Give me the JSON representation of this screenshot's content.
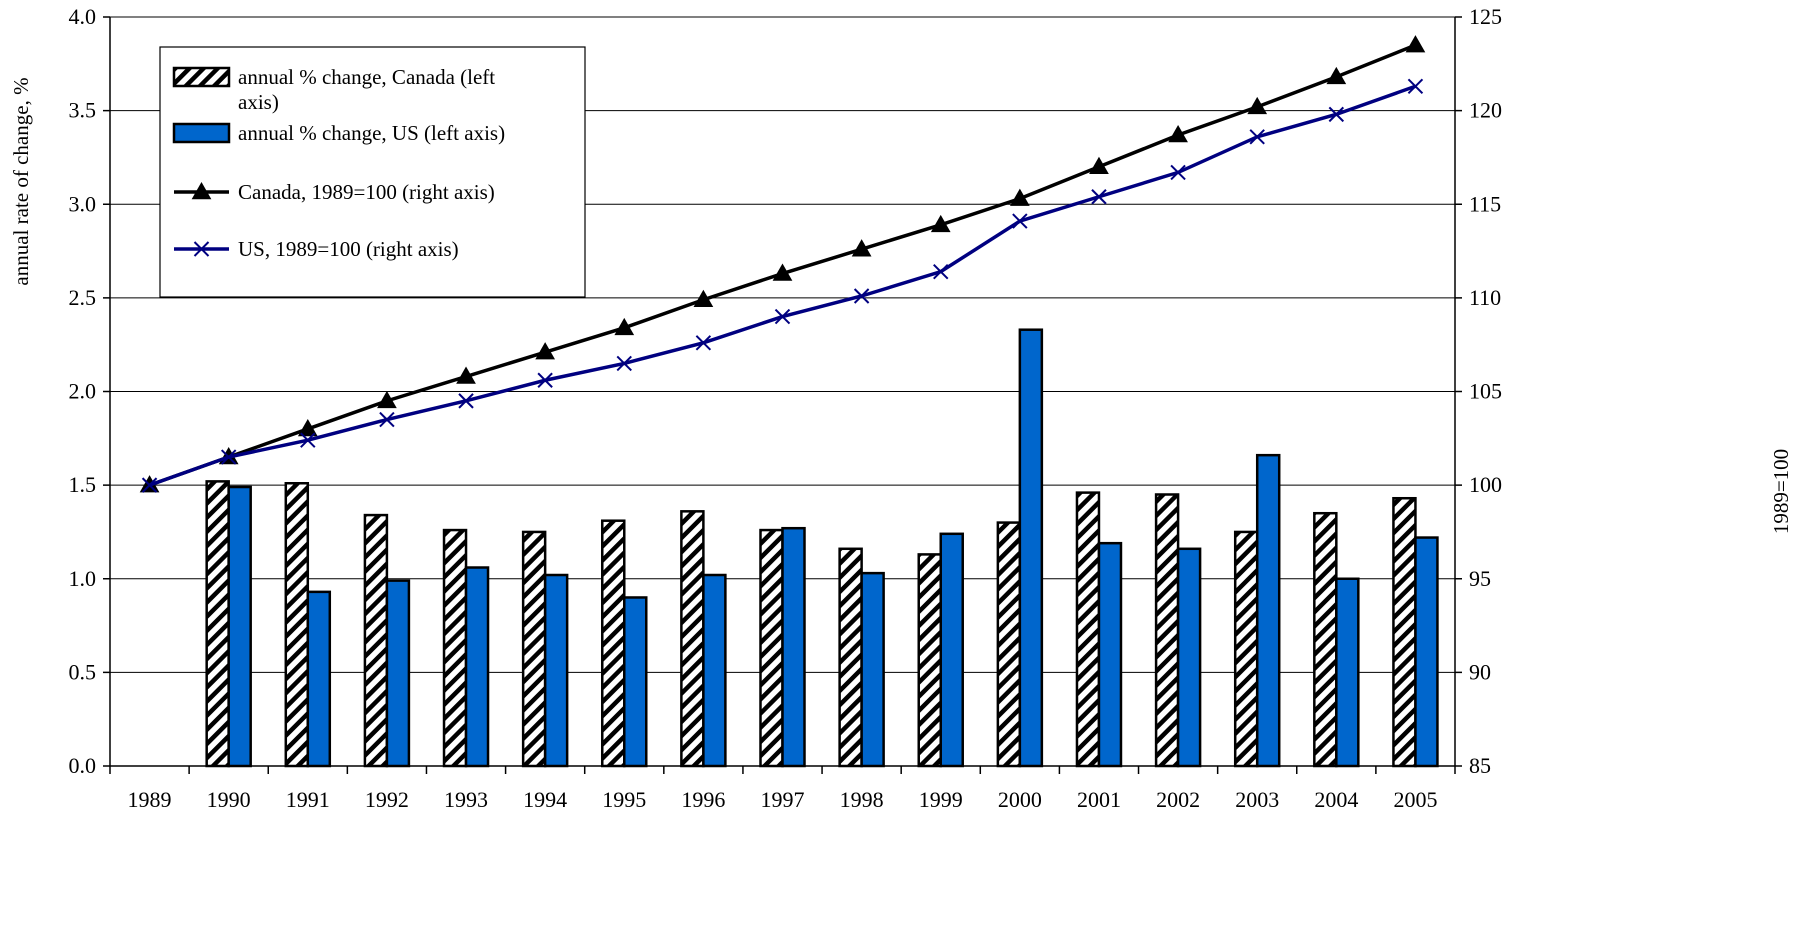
{
  "chart_data": {
    "type": "bar",
    "categories": [
      "1989",
      "1990",
      "1991",
      "1992",
      "1993",
      "1994",
      "1995",
      "1996",
      "1997",
      "1998",
      "1999",
      "2000",
      "2001",
      "2002",
      "2003",
      "2004",
      "2005"
    ],
    "series": [
      {
        "name": "annual % change, Canada (left axis)",
        "kind": "bar",
        "axis": "left",
        "color": "#ffffff",
        "pattern": "diagonal-hatch",
        "values": [
          null,
          1.52,
          1.51,
          1.34,
          1.26,
          1.25,
          1.31,
          1.36,
          1.26,
          1.16,
          1.13,
          1.3,
          1.46,
          1.45,
          1.25,
          1.35,
          1.43
        ]
      },
      {
        "name": "annual % change, US (left axis)",
        "kind": "bar",
        "axis": "left",
        "color": "#0066cc",
        "values": [
          null,
          1.49,
          0.93,
          0.99,
          1.06,
          1.02,
          0.9,
          1.02,
          1.27,
          1.03,
          1.24,
          2.33,
          1.19,
          1.16,
          1.66,
          1.0,
          1.22
        ]
      },
      {
        "name": "Canada, 1989=100 (right axis)",
        "kind": "line",
        "axis": "right",
        "color": "#000000",
        "marker": "triangle",
        "values": [
          100.0,
          101.5,
          103.0,
          104.5,
          105.8,
          107.1,
          108.4,
          109.9,
          111.3,
          112.6,
          113.9,
          115.3,
          117.0,
          118.7,
          120.2,
          121.8,
          123.5
        ]
      },
      {
        "name": "US, 1989=100 (right axis)",
        "kind": "line",
        "axis": "right",
        "color": "#000080",
        "marker": "x",
        "values": [
          100.0,
          101.5,
          102.4,
          103.5,
          104.5,
          105.6,
          106.5,
          107.6,
          109.0,
          110.1,
          111.4,
          114.1,
          115.4,
          116.7,
          118.6,
          119.8,
          121.3
        ]
      }
    ],
    "ylabel": "annual rate of change, %",
    "y2label": "1989=100",
    "ylim": [
      0.0,
      4.0
    ],
    "y2lim": [
      85,
      125
    ],
    "yticks": [
      "0.0",
      "0.5",
      "1.0",
      "1.5",
      "2.0",
      "2.5",
      "3.0",
      "3.5",
      "4.0"
    ],
    "y2ticks": [
      "85",
      "90",
      "95",
      "100",
      "105",
      "110",
      "115",
      "120",
      "125"
    ],
    "grid": true,
    "legend_position": "top-left"
  }
}
